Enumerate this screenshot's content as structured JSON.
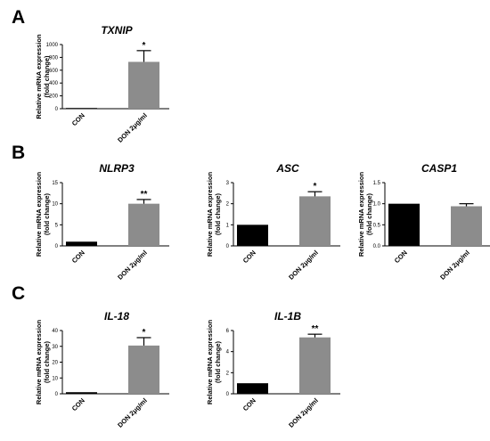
{
  "panels": [
    "A",
    "B",
    "C"
  ],
  "chart_data": [
    {
      "panel": "A",
      "type": "bar",
      "title": "TXNIP",
      "ylabel": [
        "Relative mRNA expression",
        "(fold change)"
      ],
      "categories": [
        "CON",
        "DON 2μg/ml"
      ],
      "values": [
        1,
        730
      ],
      "errors": [
        0,
        175
      ],
      "significance": [
        "",
        "*"
      ],
      "colors": [
        "#000000",
        "#8c8c8c"
      ],
      "ylim": [
        0,
        1000
      ],
      "yticks": [
        0,
        200,
        400,
        600,
        800,
        1000
      ],
      "ytick_labels": [
        "0",
        "200",
        "400",
        "600",
        "800",
        "1000"
      ]
    },
    {
      "panel": "B",
      "type": "bar",
      "title": "NLRP3",
      "ylabel": [
        "Relative mRNA expression",
        "(fold change)"
      ],
      "categories": [
        "CON",
        "DON 2μg/ml"
      ],
      "values": [
        1,
        10
      ],
      "errors": [
        0,
        1
      ],
      "significance": [
        "",
        "**"
      ],
      "colors": [
        "#000000",
        "#8c8c8c"
      ],
      "ylim": [
        0,
        15
      ],
      "yticks": [
        0,
        5,
        10,
        15
      ],
      "ytick_labels": [
        "0",
        "5",
        "10",
        "15"
      ]
    },
    {
      "panel": "B",
      "type": "bar",
      "title": "ASC",
      "ylabel": [
        "Relative mRNA expression",
        "(fold change)"
      ],
      "categories": [
        "CON",
        "DON 2μg/ml"
      ],
      "values": [
        1,
        2.35
      ],
      "errors": [
        0,
        0.22
      ],
      "significance": [
        "",
        "*"
      ],
      "colors": [
        "#000000",
        "#8c8c8c"
      ],
      "ylim": [
        0,
        3
      ],
      "yticks": [
        0,
        1,
        2,
        3
      ],
      "ytick_labels": [
        "0",
        "1",
        "2",
        "3"
      ]
    },
    {
      "panel": "B",
      "type": "bar",
      "title": "CASP1",
      "ylabel": [
        "Relative mRNA expression",
        "(fold change)"
      ],
      "categories": [
        "CON",
        "DON 2μg/ml"
      ],
      "values": [
        1,
        0.94
      ],
      "errors": [
        0,
        0.06
      ],
      "significance": [
        "",
        ""
      ],
      "colors": [
        "#000000",
        "#8c8c8c"
      ],
      "ylim": [
        0,
        1.5
      ],
      "yticks": [
        0,
        0.5,
        1,
        1.5
      ],
      "ytick_labels": [
        "0.0",
        "0.5",
        "1.0",
        "1.5"
      ]
    },
    {
      "panel": "C",
      "type": "bar",
      "title": "IL-18",
      "ylabel": [
        "Relative mRNA expression",
        "(fold change)"
      ],
      "categories": [
        "CON",
        "DON 2μg/ml"
      ],
      "values": [
        1,
        30.5
      ],
      "errors": [
        0,
        5
      ],
      "significance": [
        "",
        "*"
      ],
      "colors": [
        "#000000",
        "#8c8c8c"
      ],
      "ylim": [
        0,
        40
      ],
      "yticks": [
        0,
        10,
        20,
        30,
        40
      ],
      "ytick_labels": [
        "0",
        "10",
        "20",
        "30",
        "40"
      ]
    },
    {
      "panel": "C",
      "type": "bar",
      "title": "IL-1B",
      "ylabel": [
        "Relative mRNA expression",
        "(fold change)"
      ],
      "categories": [
        "CON",
        "DON 2μg/ml"
      ],
      "values": [
        1,
        5.35
      ],
      "errors": [
        0,
        0.3
      ],
      "significance": [
        "",
        "**"
      ],
      "colors": [
        "#000000",
        "#8c8c8c"
      ],
      "ylim": [
        0,
        6
      ],
      "yticks": [
        0,
        2,
        4,
        6
      ],
      "ytick_labels": [
        "0",
        "2",
        "4",
        "6"
      ]
    }
  ]
}
